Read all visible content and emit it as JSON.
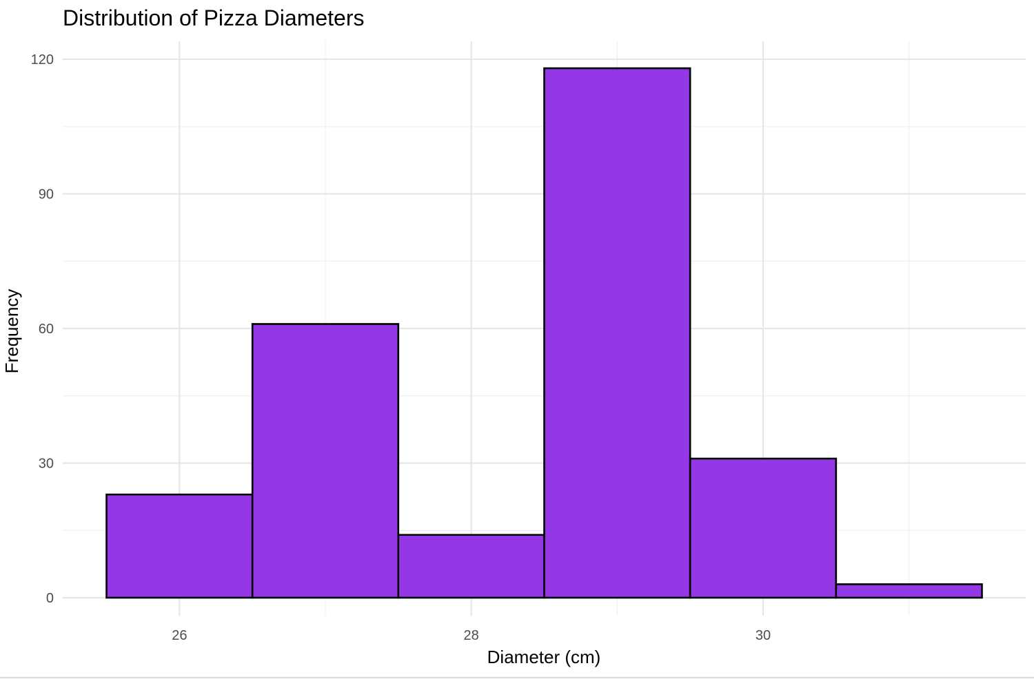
{
  "chart_data": {
    "type": "bar",
    "subtype": "histogram",
    "title": "Distribution of Pizza Diameters",
    "xlabel": "Diameter (cm)",
    "ylabel": "Frequency",
    "bins": [
      {
        "x_start": 25.5,
        "x_end": 26.5,
        "value": 23
      },
      {
        "x_start": 26.5,
        "x_end": 27.5,
        "value": 61
      },
      {
        "x_start": 27.5,
        "x_end": 28.5,
        "value": 14
      },
      {
        "x_start": 28.5,
        "x_end": 29.5,
        "value": 118
      },
      {
        "x_start": 29.5,
        "x_end": 30.5,
        "value": 31
      },
      {
        "x_start": 30.5,
        "x_end": 31.5,
        "value": 3
      }
    ],
    "xlim": [
      25.2,
      31.8
    ],
    "ylim": [
      -4,
      124
    ],
    "x_ticks": [
      26,
      28,
      30
    ],
    "x_tick_labels": [
      "26",
      "28",
      "30"
    ],
    "y_ticks": [
      0,
      30,
      60,
      90,
      120
    ],
    "y_tick_labels": [
      "0",
      "30",
      "60",
      "90",
      "120"
    ],
    "grid": true,
    "legend": "none",
    "colors": {
      "bar_fill": "#9337E7",
      "bar_outline": "#000000",
      "grid": "#e6e6e6",
      "background": "#ffffff"
    }
  }
}
